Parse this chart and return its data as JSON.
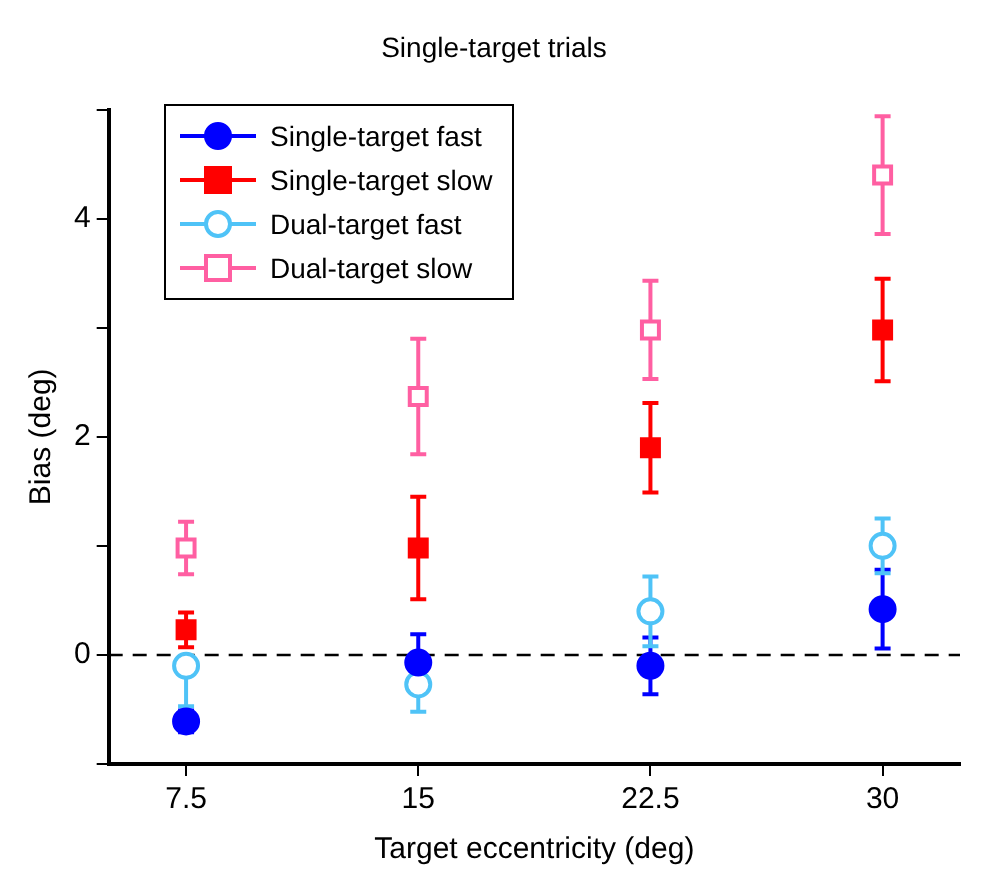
{
  "chart_data": {
    "type": "scatter",
    "title": "Single-target trials",
    "xlabel": "Target eccentricity (deg)",
    "ylabel": "Bias (deg)",
    "xlim": [
      5,
      32.5
    ],
    "xticks": [
      7.5,
      15,
      22.5,
      30
    ],
    "ylim": [
      -1,
      5
    ],
    "yticks": [
      {
        "value": -1,
        "label": null
      },
      0,
      {
        "value": 1,
        "label": null
      },
      2,
      {
        "value": 3,
        "label": null
      },
      4,
      {
        "value": 5,
        "label": null
      }
    ],
    "x": [
      7.5,
      15,
      22.5,
      30
    ],
    "series": [
      {
        "name": "Single-target fast",
        "color": "#0000ff",
        "marker": "circle",
        "values": [
          -0.61,
          -0.07,
          -0.1,
          0.42
        ],
        "errors": [
          0.1,
          0.26,
          0.26,
          0.36
        ]
      },
      {
        "name": "Single-target slow",
        "color": "#ff0000",
        "marker": "square",
        "values": [
          0.23,
          0.98,
          1.9,
          2.98
        ],
        "errors": [
          0.16,
          0.47,
          0.41,
          0.47
        ]
      },
      {
        "name": "Dual-target fast",
        "color": "#4fc3f7",
        "marker": "circle",
        "values": [
          -0.1,
          -0.27,
          0.4,
          1.0
        ],
        "errors": [
          [
            -0.47,
            -0.1
          ],
          0.25,
          0.32,
          0.25
        ]
      },
      {
        "name": "Dual-target slow",
        "color": "#ff5fa2",
        "marker": "square",
        "values": [
          0.98,
          2.37,
          2.98,
          4.4
        ],
        "errors": [
          0.24,
          0.53,
          0.45,
          0.54
        ]
      }
    ],
    "ref_lines": [
      {
        "axis": "y",
        "value": 0,
        "color": "#000000",
        "line_style": "dashed"
      }
    ],
    "legend": "top left",
    "grid": false
  }
}
